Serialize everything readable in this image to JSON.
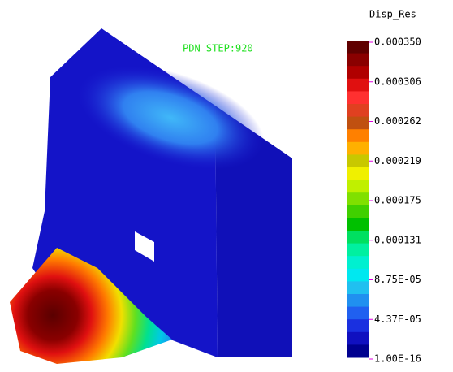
{
  "annotation": "PDN STEP:920",
  "legend": {
    "title": "Disp_Res",
    "labels": [
      "0.000350",
      "0.000306",
      "0.000262",
      "0.000219",
      "0.000175",
      "0.000131",
      "8.75E-05",
      "4.37E-05",
      "1.00E-16"
    ]
  }
}
